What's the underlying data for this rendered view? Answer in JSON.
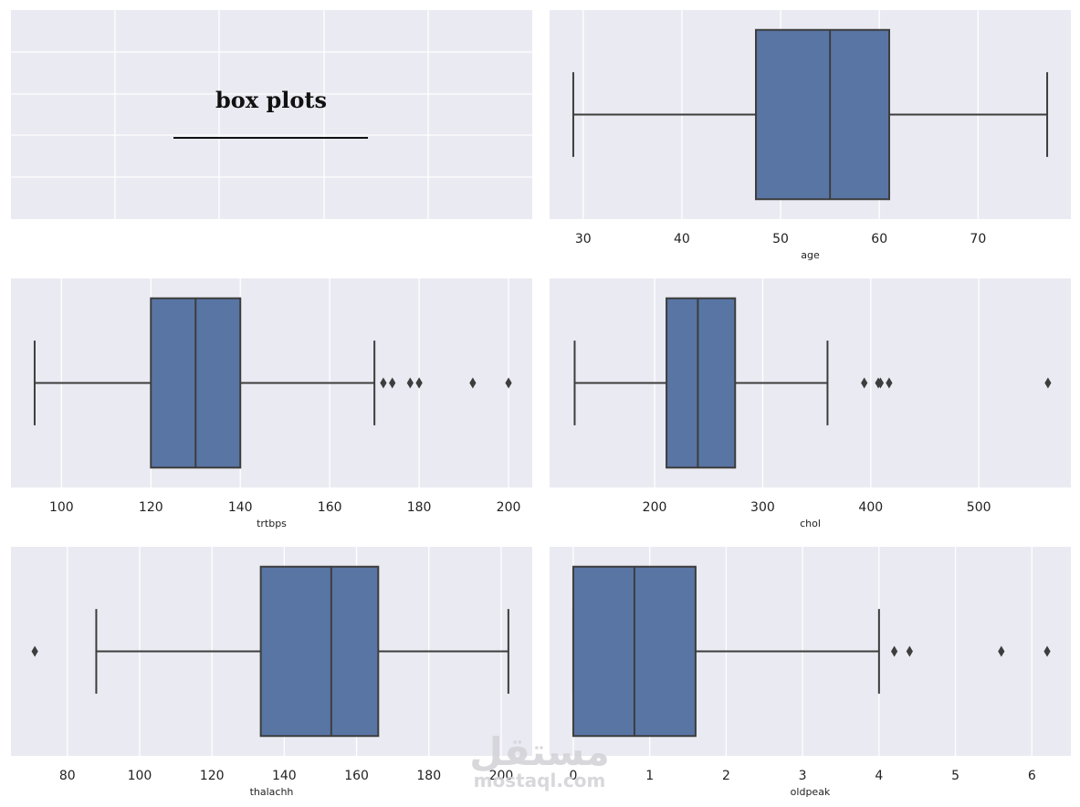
{
  "figure": {
    "background": "#ffffff",
    "panel_background": "#eaeaf2",
    "grid_color": "#ffffff",
    "box_color": "#5875a4",
    "line_color": "#3d3d3d",
    "title_panel": {
      "title": "box plots",
      "underline": "________________"
    },
    "watermark": {
      "main": "مستقل",
      "sub": "mostaql.com"
    }
  },
  "chart_data": [
    {
      "type": "box",
      "orientation": "horizontal",
      "xlabel": "age",
      "xlim": [
        26.6,
        79.4
      ],
      "xticks": [
        30,
        40,
        50,
        60,
        70
      ],
      "grid": true,
      "stats": {
        "whislo": 29,
        "q1": 47.5,
        "median": 55,
        "q3": 61,
        "whishi": 77
      },
      "fliers": []
    },
    {
      "type": "box",
      "orientation": "horizontal",
      "xlabel": "trtbps",
      "xlim": [
        88.7,
        205.3
      ],
      "xticks": [
        100,
        120,
        140,
        160,
        180,
        200
      ],
      "grid": true,
      "stats": {
        "whislo": 94,
        "q1": 120,
        "median": 130,
        "q3": 140,
        "whishi": 170
      },
      "fliers": [
        172,
        174,
        178,
        180,
        180,
        192,
        200
      ]
    },
    {
      "type": "box",
      "orientation": "horizontal",
      "xlabel": "chol",
      "xlim": [
        102.8,
        585.2
      ],
      "xticks": [
        200,
        300,
        400,
        500
      ],
      "grid": true,
      "stats": {
        "whislo": 126,
        "q1": 211,
        "median": 240,
        "q3": 274.5,
        "whishi": 360
      },
      "fliers": [
        394,
        407,
        409,
        417,
        564
      ]
    },
    {
      "type": "box",
      "orientation": "horizontal",
      "xlabel": "thalachh",
      "xlim": [
        64.4,
        208.6
      ],
      "xticks": [
        80,
        100,
        120,
        140,
        160,
        180,
        200
      ],
      "grid": true,
      "stats": {
        "whislo": 88,
        "q1": 133.5,
        "median": 153,
        "q3": 166,
        "whishi": 202
      },
      "fliers": [
        71
      ]
    },
    {
      "type": "box",
      "orientation": "horizontal",
      "xlabel": "oldpeak",
      "xlim": [
        -0.31,
        6.51
      ],
      "xticks": [
        0,
        1,
        2,
        3,
        4,
        5,
        6
      ],
      "grid": true,
      "stats": {
        "whislo": 0,
        "q1": 0,
        "median": 0.8,
        "q3": 1.6,
        "whishi": 4
      },
      "fliers": [
        4.2,
        4.4,
        5.6,
        6.2
      ]
    }
  ]
}
